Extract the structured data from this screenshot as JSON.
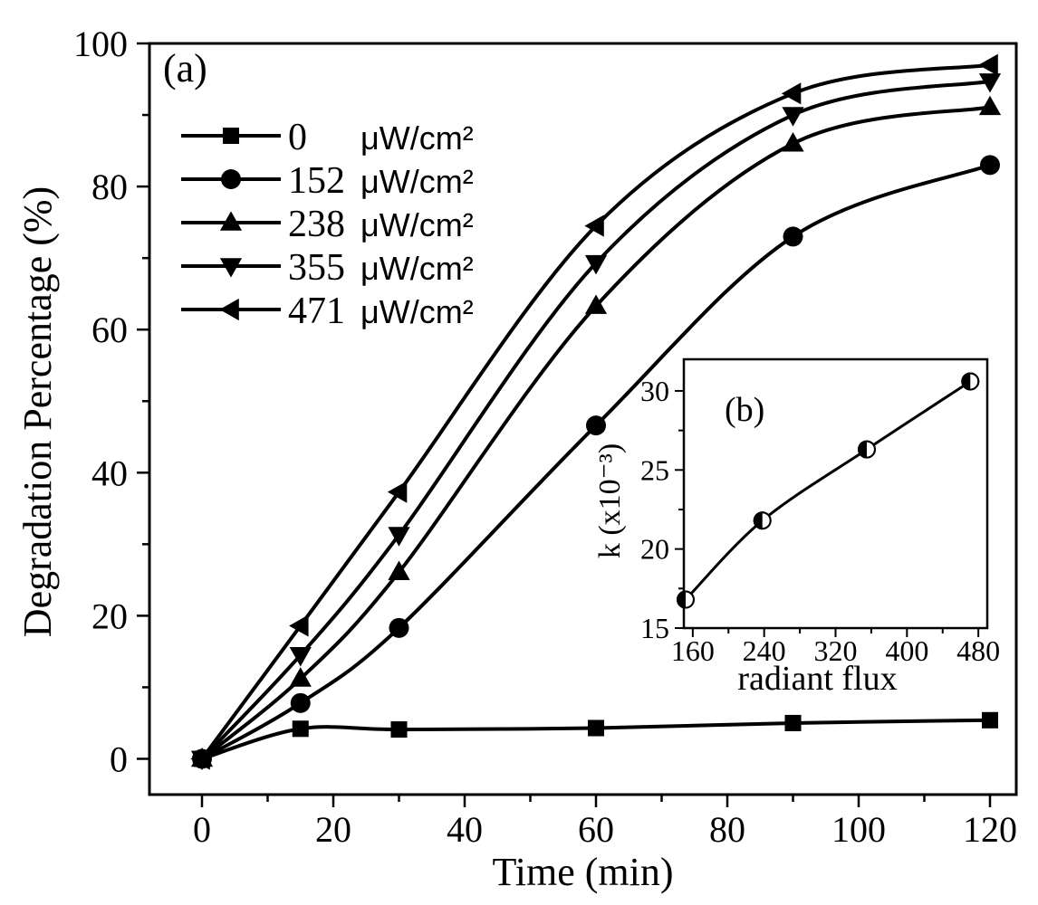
{
  "chart_data": [
    {
      "id": "main",
      "type": "line",
      "panel_label": "(a)",
      "title": "",
      "xlabel": "Time (min)",
      "ylabel": "Degradation Percentage (%)",
      "xlim": [
        -8,
        124
      ],
      "ylim": [
        -5,
        100
      ],
      "xticks": [
        0,
        20,
        40,
        60,
        80,
        100,
        120
      ],
      "yticks": [
        0,
        20,
        40,
        60,
        80,
        100
      ],
      "x": [
        0,
        15,
        30,
        60,
        90,
        120
      ],
      "legend_position": "top-left",
      "series": [
        {
          "name": "0",
          "unit": "μW/cm²",
          "marker": "square",
          "values": [
            0,
            4.2,
            4.1,
            4.3,
            5.0,
            5.4
          ]
        },
        {
          "name": "152",
          "unit": "μW/cm²",
          "marker": "circle",
          "values": [
            0,
            7.8,
            18.3,
            46.6,
            73.0,
            83.0
          ]
        },
        {
          "name": "238",
          "unit": "μW/cm²",
          "marker": "triangle-up",
          "values": [
            0,
            11.2,
            26.1,
            63.3,
            86.0,
            91.1
          ]
        },
        {
          "name": "355",
          "unit": "μW/cm²",
          "marker": "triangle-down",
          "values": [
            0,
            14.5,
            31.3,
            69.3,
            90.0,
            94.7
          ]
        },
        {
          "name": "471",
          "unit": "μW/cm²",
          "marker": "triangle-left",
          "values": [
            0,
            18.6,
            37.3,
            74.5,
            93.0,
            97.0
          ]
        }
      ]
    },
    {
      "id": "inset",
      "type": "line",
      "panel_label": "(b)",
      "title": "",
      "xlabel": "radiant flux",
      "ylabel": "k (x10⁻³)",
      "xlim": [
        150,
        490
      ],
      "ylim": [
        15,
        32
      ],
      "xticks": [
        160,
        240,
        320,
        400,
        480
      ],
      "yticks": [
        15,
        20,
        25,
        30
      ],
      "x": [
        152,
        238,
        355,
        471
      ],
      "series": [
        {
          "name": "k",
          "marker": "half-filled-circle",
          "values": [
            16.8,
            21.8,
            26.3,
            30.6
          ]
        }
      ]
    }
  ]
}
